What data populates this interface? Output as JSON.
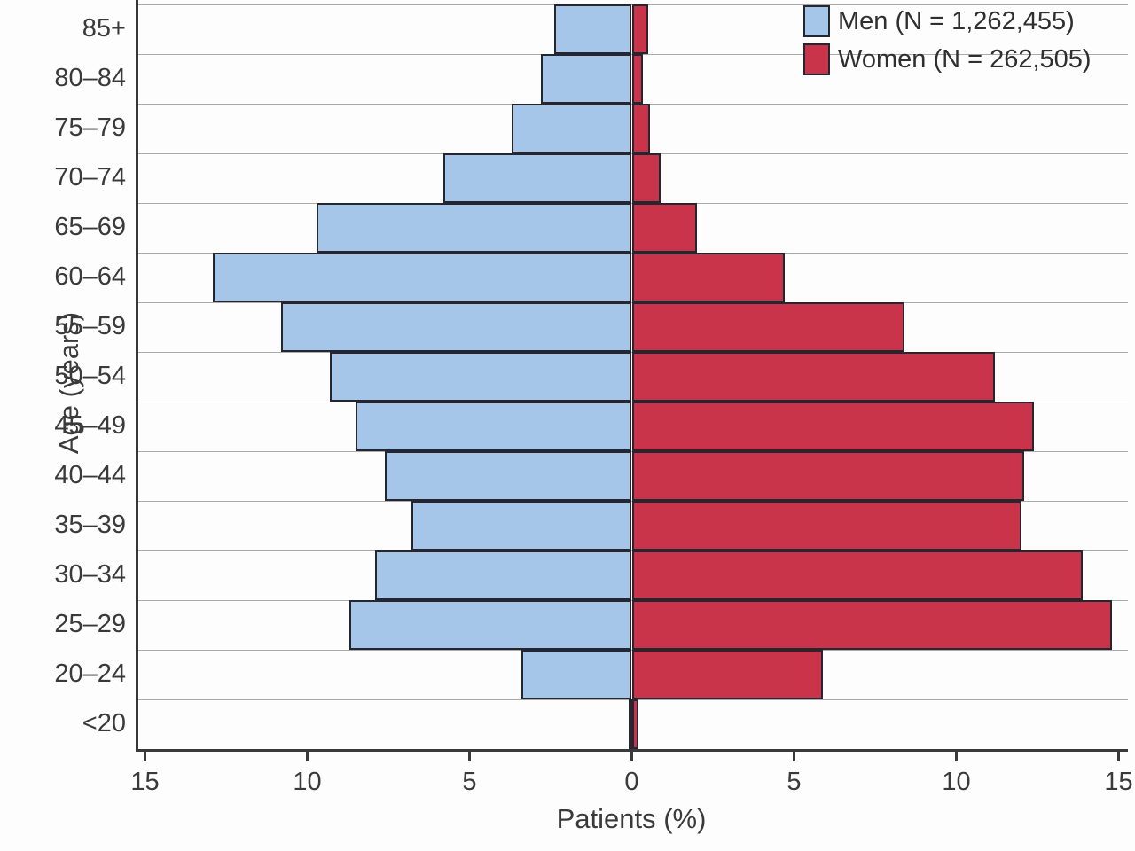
{
  "chart_data": {
    "type": "bar",
    "variant": "population-pyramid",
    "title": "",
    "xlabel": "Patients (%)",
    "ylabel": "Age (years)",
    "categories": [
      "85+",
      "80–84",
      "75–79",
      "70–74",
      "65–69",
      "60–64",
      "55–59",
      "50–54",
      "45–49",
      "40–44",
      "35–39",
      "30–34",
      "25–29",
      "20–24",
      "<20"
    ],
    "series": [
      {
        "name": "Men (N = 1,262,455)",
        "side": "left",
        "color": "#a5c6e9",
        "values": [
          2.4,
          2.8,
          3.7,
          5.8,
          9.7,
          12.9,
          10.8,
          9.3,
          8.5,
          7.6,
          6.8,
          7.9,
          8.7,
          3.4,
          0.1
        ]
      },
      {
        "name": "Women (N = 262,505)",
        "side": "right",
        "color": "#c9344b",
        "values": [
          0.5,
          0.35,
          0.55,
          0.9,
          2.0,
          4.7,
          8.4,
          11.2,
          12.4,
          12.1,
          12.0,
          13.9,
          14.8,
          5.9,
          0.2
        ]
      }
    ],
    "xlim": [
      -15,
      15
    ],
    "x_tick_values": [
      -15,
      -10,
      -5,
      0,
      5,
      10,
      15
    ],
    "x_tick_labels": [
      "15",
      "10",
      "5",
      "0",
      "5",
      "10",
      "15"
    ],
    "grid": "horizontal row separator lines",
    "legend_position": "top-right",
    "colors": {
      "men": "#a5c6e9",
      "women": "#c9344b",
      "bar_outline": "#262631",
      "axis": "#3a3a3a",
      "gridline": "#8f8f8f",
      "background": "#fdfdfd"
    }
  }
}
